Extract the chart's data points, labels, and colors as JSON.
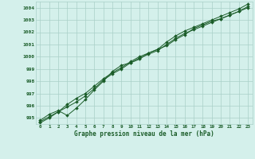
{
  "title": "Graphe pression niveau de la mer (hPa)",
  "x_labels": [
    "0",
    "1",
    "2",
    "3",
    "4",
    "5",
    "6",
    "7",
    "8",
    "9",
    "10",
    "11",
    "12",
    "13",
    "14",
    "15",
    "16",
    "17",
    "18",
    "19",
    "20",
    "21",
    "22",
    "23"
  ],
  "ylim": [
    994.5,
    1004.5
  ],
  "yticks": [
    995,
    996,
    997,
    998,
    999,
    1000,
    1001,
    1002,
    1003,
    1004
  ],
  "bg_color": "#d4f0eb",
  "grid_color": "#aacfc8",
  "line_color": "#1a5c28",
  "series": [
    [
      994.8,
      995.3,
      995.6,
      995.2,
      995.8,
      996.5,
      997.3,
      998.0,
      998.8,
      999.3,
      999.5,
      999.8,
      1000.3,
      1000.6,
      1000.9,
      1001.4,
      1001.8,
      1002.3,
      1002.6,
      1002.9,
      1003.1,
      1003.4,
      1003.7,
      1004.0
    ],
    [
      994.7,
      995.1,
      995.5,
      995.9,
      996.3,
      996.8,
      997.4,
      998.1,
      998.6,
      999.0,
      999.5,
      999.9,
      1000.2,
      1000.5,
      1001.0,
      1001.5,
      1001.9,
      1002.2,
      1002.5,
      1002.8,
      1003.1,
      1003.4,
      1003.7,
      1004.1
    ],
    [
      994.6,
      995.0,
      995.5,
      996.1,
      996.6,
      997.0,
      997.6,
      998.2,
      998.7,
      999.1,
      999.6,
      1000.0,
      1000.3,
      1000.6,
      1001.2,
      1001.7,
      1002.1,
      1002.4,
      1002.7,
      1003.0,
      1003.3,
      1003.6,
      1003.9,
      1004.3
    ]
  ],
  "figsize": [
    3.2,
    2.0
  ],
  "dpi": 100
}
